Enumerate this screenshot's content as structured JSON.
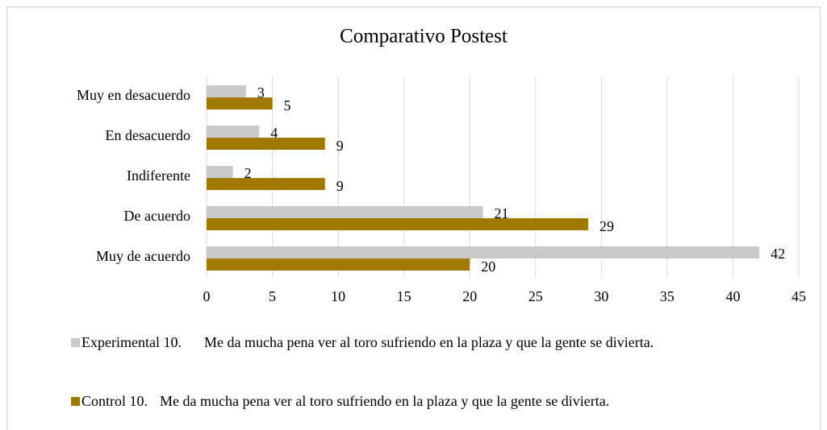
{
  "chart_data": {
    "type": "hbar",
    "title": "Comparativo Postest",
    "categories": [
      "Muy en desacuerdo",
      "En desacuerdo",
      "Indiferente",
      "De acuerdo",
      "Muy de acuerdo"
    ],
    "series": [
      {
        "name": "Experimental 10.\tMe da mucha pena ver al toro sufriendo en la plaza y que la gente se divierta.",
        "color": "#c9c9c9",
        "values": [
          3,
          4,
          2,
          21,
          42
        ]
      },
      {
        "name": "Control 10.\tMe da mucha pena ver al toro sufriendo en la plaza y que la gente se divierta.",
        "color": "#a07a00",
        "values": [
          5,
          9,
          9,
          29,
          20
        ]
      }
    ],
    "xlim": [
      0,
      45
    ],
    "xticks": [
      0,
      5,
      10,
      15,
      20,
      25,
      30,
      35,
      40,
      45
    ],
    "grid": true,
    "legend": "bottom"
  }
}
